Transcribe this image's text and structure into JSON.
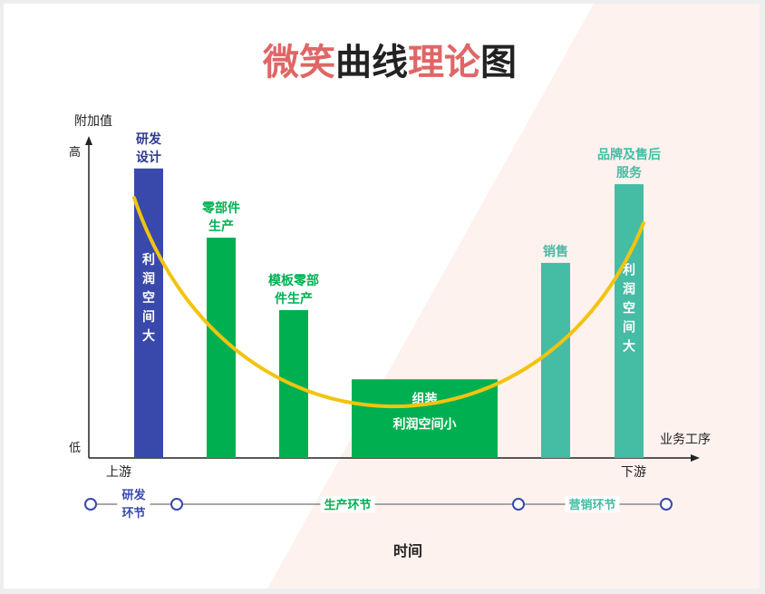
{
  "title": {
    "parts": [
      {
        "text": "微笑",
        "color": "#e06666"
      },
      {
        "text": "曲线",
        "color": "#222222"
      },
      {
        "text": "理论",
        "color": "#e06666"
      },
      {
        "text": "图",
        "color": "#222222"
      }
    ]
  },
  "axis": {
    "y_label": "附加值",
    "y_high": "高",
    "y_low": "低",
    "x_label": "业务工序",
    "x_start": "上游",
    "x_end": "下游"
  },
  "stages": [
    {
      "label_lines": [
        "研发",
        "设计"
      ],
      "inner_lines": [
        "利",
        "润",
        "空",
        "间",
        "大"
      ],
      "color": "#3949ab",
      "label_color": "#2c3a8c",
      "level": 0.92
    },
    {
      "label_lines": [
        "零部件",
        "生产"
      ],
      "inner_lines": [],
      "color": "#00b050",
      "label_color": "#00b050",
      "level": 0.7
    },
    {
      "label_lines": [
        "模板零部",
        "件生产"
      ],
      "inner_lines": [],
      "color": "#00b050",
      "label_color": "#00b050",
      "level": 0.47
    },
    {
      "label_lines": [],
      "inner_lines": [
        "组装",
        "利润空间小"
      ],
      "color": "#00b050",
      "label_color": "#00b050",
      "level": 0.25
    },
    {
      "label_lines": [
        "销售"
      ],
      "inner_lines": [],
      "color": "#45bca4",
      "label_color": "#45bca4",
      "level": 0.62
    },
    {
      "label_lines": [
        "品牌及售后",
        "服务"
      ],
      "inner_lines": [
        "利",
        "润",
        "空",
        "间",
        "大"
      ],
      "color": "#45bca4",
      "label_color": "#45bca4",
      "level": 0.87
    }
  ],
  "curve_color": "#f2c40f",
  "timeline": {
    "line_color": "#8a8a8a",
    "node_color": "#3949ab",
    "segments": [
      {
        "label_lines": [
          "研发",
          "环节"
        ],
        "color": "#3949ab"
      },
      {
        "label_lines": [
          "生产环节"
        ],
        "color": "#00b050"
      },
      {
        "label_lines": [
          "营销环节"
        ],
        "color": "#45bca4"
      }
    ],
    "caption": "时间"
  }
}
